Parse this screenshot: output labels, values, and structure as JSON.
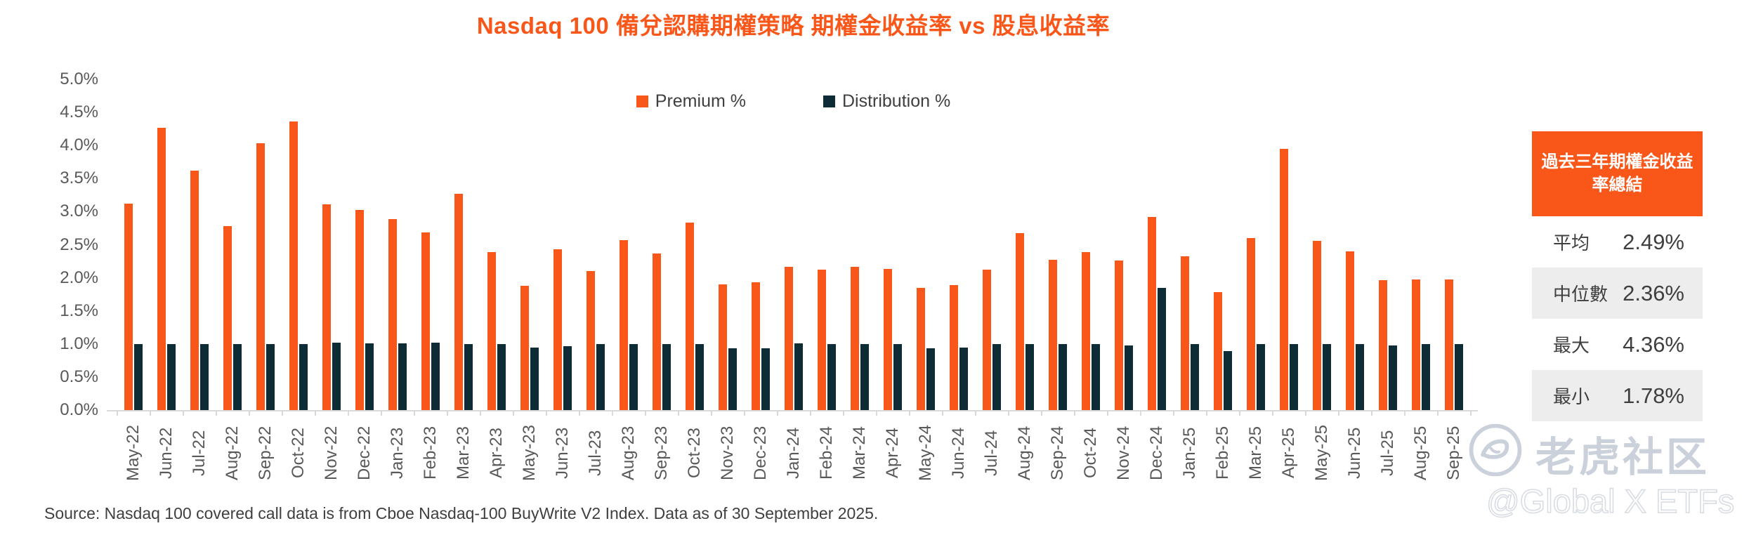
{
  "title": "Nasdaq 100 備兌認購期權策略 期權金收益率 vs 股息收益率",
  "legend": [
    {
      "label": "Premium %",
      "color": "#F9571A"
    },
    {
      "label": "Distribution %",
      "color": "#0D2C36"
    }
  ],
  "chart_data": {
    "type": "bar",
    "title": "Nasdaq 100 備兌認購期權策略 期權金收益率 vs 股息收益率",
    "categories": [
      "May-22",
      "Jun-22",
      "Jul-22",
      "Aug-22",
      "Sep-22",
      "Oct-22",
      "Nov-22",
      "Dec-22",
      "Jan-23",
      "Feb-23",
      "Mar-23",
      "Apr-23",
      "May-23",
      "Jun-23",
      "Jul-23",
      "Aug-23",
      "Sep-23",
      "Oct-23",
      "Nov-23",
      "Dec-23",
      "Jan-24",
      "Feb-24",
      "Mar-24",
      "Apr-24",
      "May-24",
      "Jun-24",
      "Jul-24",
      "Aug-24",
      "Sep-24",
      "Oct-24",
      "Nov-24",
      "Dec-24",
      "Jan-25",
      "Feb-25",
      "Mar-25",
      "Apr-25",
      "May-25",
      "Jun-25",
      "Jul-25",
      "Aug-25",
      "Sep-25"
    ],
    "series": [
      {
        "name": "Premium %",
        "color": "#F9571A",
        "values": [
          3.12,
          4.27,
          3.62,
          2.78,
          4.03,
          4.36,
          3.11,
          3.03,
          2.89,
          2.69,
          3.27,
          2.39,
          1.88,
          2.43,
          2.1,
          2.57,
          2.37,
          2.83,
          1.9,
          1.93,
          2.17,
          2.12,
          2.17,
          2.13,
          1.85,
          1.89,
          2.12,
          2.68,
          2.27,
          2.39,
          2.26,
          2.92,
          2.33,
          1.78,
          2.6,
          3.95,
          2.56,
          2.4,
          1.96,
          1.98,
          1.98
        ]
      },
      {
        "name": "Distribution %",
        "color": "#0D2C36",
        "values": [
          1.0,
          1.0,
          1.0,
          1.0,
          1.0,
          1.0,
          1.02,
          1.01,
          1.01,
          1.02,
          1.0,
          1.0,
          0.95,
          0.97,
          1.0,
          1.0,
          1.0,
          1.0,
          0.94,
          0.94,
          1.01,
          1.0,
          1.0,
          1.0,
          0.93,
          0.95,
          1.0,
          1.0,
          1.0,
          1.0,
          0.98,
          1.85,
          1.0,
          0.89,
          1.0,
          1.0,
          1.0,
          1.0,
          0.98,
          1.0,
          1.0
        ]
      }
    ],
    "ylim": [
      0,
      5
    ],
    "ytick_step": 0.5,
    "ytick_labels": [
      "5.0%",
      "4.5%",
      "4.0%",
      "3.5%",
      "3.0%",
      "2.5%",
      "2.0%",
      "1.5%",
      "1.0%",
      "0.5%",
      "0.0%"
    ],
    "xlabel": "",
    "ylabel": "",
    "grid": false,
    "legend_position": "top-center"
  },
  "summary_box": {
    "header": "過去三年期權金收益率總結",
    "rows": [
      {
        "label": "平均",
        "value": "2.49%"
      },
      {
        "label": "中位數",
        "value": "2.36%"
      },
      {
        "label": "最大",
        "value": "4.36%"
      },
      {
        "label": "最小",
        "value": "1.78%"
      }
    ]
  },
  "source_note": "Source: Nasdaq 100 covered call data is from Cboe Nasdaq-100 BuyWrite V2 Index. Data as of 30 September 2025.",
  "watermark": {
    "brand": "老虎社区",
    "handle": "@Global X ETFs"
  },
  "colors": {
    "accent_orange": "#F9571A",
    "dark_navy": "#0D2C36",
    "axis_gray": "#D9D9D9",
    "tick_text_gray": "#595959",
    "row_alt_gray": "#EDEDED",
    "watermark_gray": "#CBD1DA"
  }
}
